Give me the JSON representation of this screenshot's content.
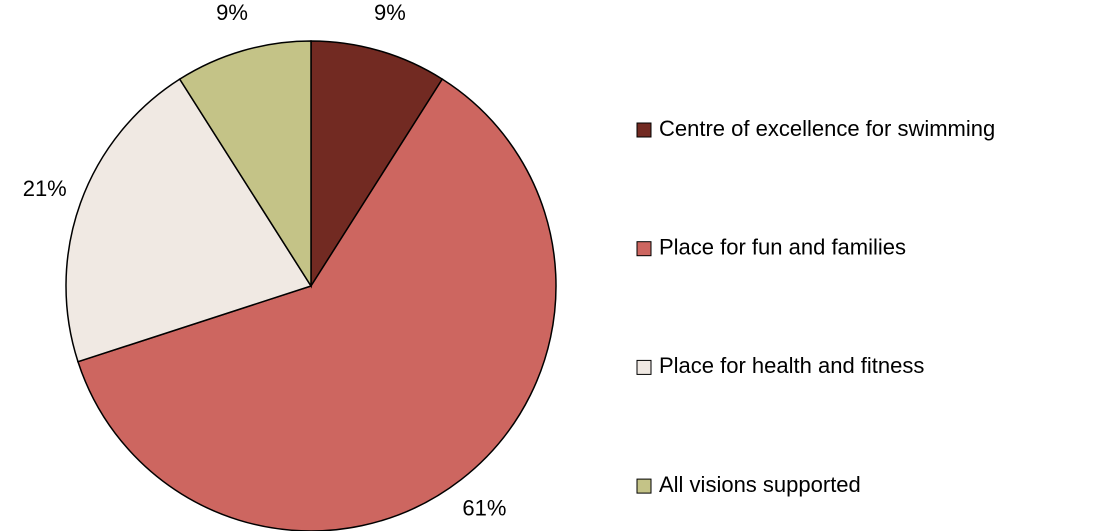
{
  "chart_data": {
    "type": "pie",
    "categories": [
      "Centre of excellence for swimming",
      "Place for fun and families",
      "Place for health and fitness",
      "All visions supported"
    ],
    "values": [
      9,
      61,
      21,
      9
    ],
    "value_labels": [
      "9%",
      "61%",
      "21%",
      "9%"
    ],
    "colors": [
      "#722a22",
      "#cd6660",
      "#f0e9e3",
      "#c4c387"
    ],
    "legend": "right"
  }
}
